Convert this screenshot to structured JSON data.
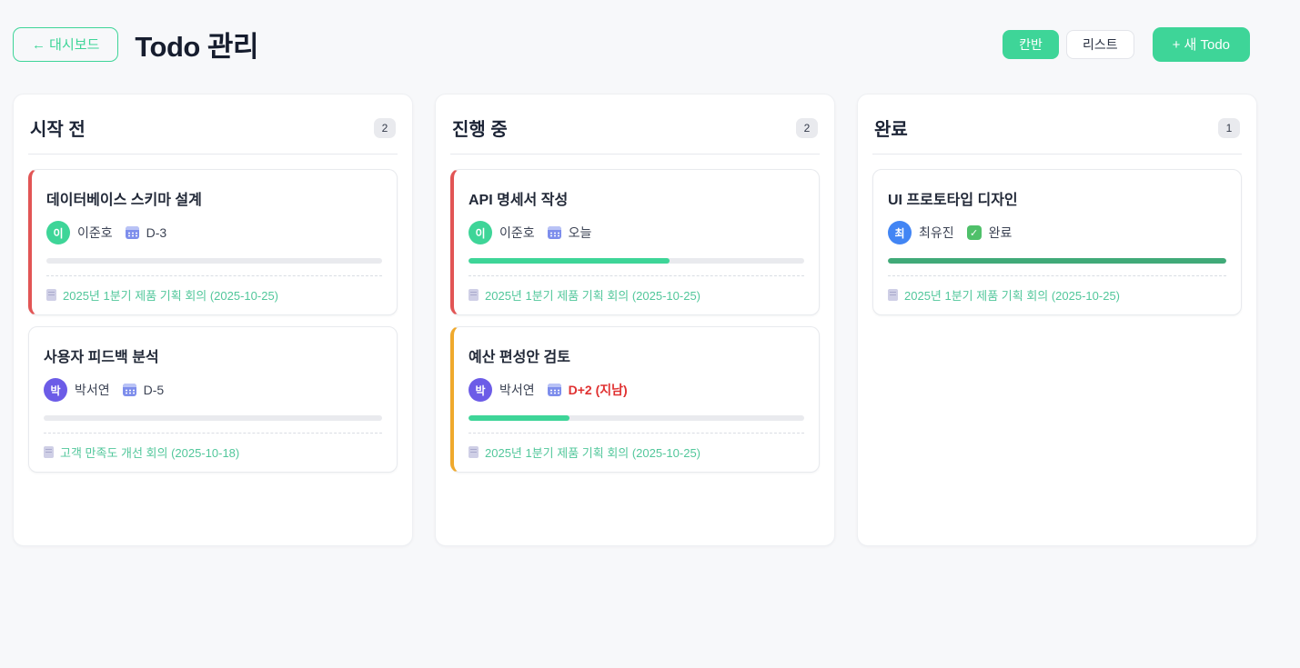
{
  "page": {
    "title": "Todo 관리"
  },
  "toolbar": {
    "back_label": "← 대시보드",
    "kanban_label": "칸반",
    "list_label": "리스트",
    "new_todo_label": "+ 새 Todo"
  },
  "colors": {
    "accent_green": "#3ed598",
    "urgent_red": "#e25555",
    "warning_amber": "#efa92d",
    "overdue_text": "#e03131",
    "link_green": "#52c79b",
    "done_bar_green": "#40aa78",
    "avatar_green": "#3ed598",
    "avatar_purple": "#6c5ce7",
    "avatar_blue": "#4285f4",
    "page_bg": "#f7f8fa"
  },
  "columns": [
    {
      "title": "시작 전",
      "count": "2",
      "cards": [
        {
          "title": "데이터베이스 스키마 설계",
          "assignee_initial": "이",
          "assignee": "이준호",
          "due": "D-3",
          "due_overdue": false,
          "done": false,
          "accent_color": "#e25555",
          "avatar_color": "#3ed598",
          "progress_pct": 0,
          "progress_color": "#3ed598",
          "meeting": "2025년 1분기 제품 기획 회의 (2025-10-25)"
        },
        {
          "title": "사용자 피드백 분석",
          "assignee_initial": "박",
          "assignee": "박서연",
          "due": "D-5",
          "due_overdue": false,
          "done": false,
          "accent_color": null,
          "avatar_color": "#6c5ce7",
          "progress_pct": 0,
          "progress_color": "#3ed598",
          "meeting": "고객 만족도 개선 회의 (2025-10-18)"
        }
      ]
    },
    {
      "title": "진행 중",
      "count": "2",
      "cards": [
        {
          "title": "API 명세서 작성",
          "assignee_initial": "이",
          "assignee": "이준호",
          "due": "오늘",
          "due_overdue": false,
          "done": false,
          "accent_color": "#e25555",
          "avatar_color": "#3ed598",
          "progress_pct": 60,
          "progress_color": "#3ed598",
          "meeting": "2025년 1분기 제품 기획 회의 (2025-10-25)"
        },
        {
          "title": "예산 편성안 검토",
          "assignee_initial": "박",
          "assignee": "박서연",
          "due": "D+2 (지남)",
          "due_overdue": true,
          "done": false,
          "accent_color": "#efa92d",
          "avatar_color": "#6c5ce7",
          "progress_pct": 30,
          "progress_color": "#3ed598",
          "meeting": "2025년 1분기 제품 기획 회의 (2025-10-25)"
        }
      ]
    },
    {
      "title": "완료",
      "count": "1",
      "cards": [
        {
          "title": "UI 프로토타입 디자인",
          "assignee_initial": "최",
          "assignee": "최유진",
          "due": "완료",
          "due_overdue": false,
          "done": true,
          "accent_color": null,
          "avatar_color": "#4285f4",
          "progress_pct": 100,
          "progress_color": "#40aa78",
          "meeting": "2025년 1분기 제품 기획 회의 (2025-10-25)"
        }
      ]
    }
  ]
}
